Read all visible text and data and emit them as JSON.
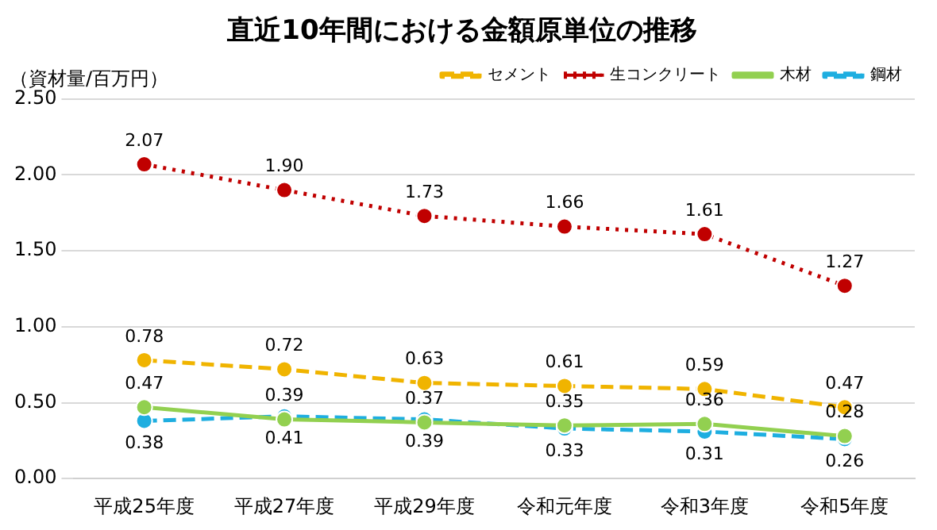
{
  "chart_data": {
    "type": "line",
    "title": "直近10年間における金額原単位の推移",
    "ylabel": "（資材量/百万円）",
    "categories": [
      "平成25年度",
      "平成27年度",
      "平成29年度",
      "令和元年度",
      "令和3年度",
      "令和5年度"
    ],
    "series": [
      {
        "name": "セメント",
        "color": "#f0b400",
        "line_style": "dashed",
        "values": [
          0.78,
          0.72,
          0.63,
          0.61,
          0.59,
          0.47
        ],
        "value_labels": [
          "0.78",
          "0.72",
          "0.63",
          "0.61",
          "0.59",
          "0.47"
        ]
      },
      {
        "name": "生コンクリート",
        "color": "#c00000",
        "line_style": "dotted",
        "values": [
          2.07,
          1.9,
          1.73,
          1.66,
          1.61,
          1.27
        ],
        "value_labels": [
          "2.07",
          "1.90",
          "1.73",
          "1.66",
          "1.61",
          "1.27"
        ]
      },
      {
        "name": "木材",
        "color": "#92d050",
        "line_style": "solid",
        "values": [
          0.47,
          0.39,
          0.37,
          0.35,
          0.36,
          0.28
        ],
        "value_labels": [
          "0.47",
          "0.39",
          "0.37",
          "0.35",
          "0.36",
          "0.28"
        ]
      },
      {
        "name": "鋼材",
        "color": "#1eaee0",
        "line_style": "dashed",
        "values": [
          0.38,
          0.41,
          0.39,
          0.33,
          0.31,
          0.26
        ],
        "value_labels": [
          "0.38",
          "0.41",
          "0.39",
          "0.33",
          "0.31",
          "0.26"
        ]
      }
    ],
    "ylim": [
      0,
      2.5
    ],
    "yticks": [
      {
        "value": 0,
        "label": "0.00"
      },
      {
        "value": 0.5,
        "label": "0.50"
      },
      {
        "value": 1,
        "label": "1.00"
      },
      {
        "value": 1.5,
        "label": "1.50"
      },
      {
        "value": 2,
        "label": "2.00"
      },
      {
        "value": 2.5,
        "label": "2.50"
      }
    ],
    "grid": "y",
    "legend": "top right",
    "marker": "circle"
  }
}
